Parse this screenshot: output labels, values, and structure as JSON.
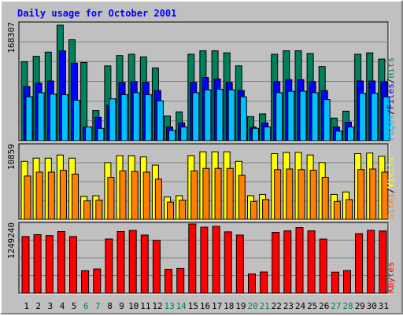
{
  "title": "Daily usage for October 2001",
  "colors": {
    "background": "#c0c0c0",
    "plot": "#c0c0c0",
    "hits": "#00805c",
    "files": "#0000ff",
    "pages": "#00c0ff",
    "visits": "#ffff00",
    "sites": "#ff8000",
    "kbytes": "#ff0000",
    "title": "#0000ff",
    "weekday_label": "#000000",
    "weekend_label": "#00805c"
  },
  "chart_data": [
    {
      "type": "bar",
      "panel": "hits-files-pages",
      "title": "Daily usage for October 2001",
      "ylabel_parts": [
        "Pages",
        "/",
        "Files",
        "/",
        "Hits"
      ],
      "ymax_label": "168307",
      "ylim": [
        0,
        168307
      ],
      "categories": [
        "1",
        "2",
        "3",
        "4",
        "5",
        "6",
        "7",
        "8",
        "9",
        "10",
        "11",
        "12",
        "13",
        "14",
        "15",
        "16",
        "17",
        "18",
        "19",
        "20",
        "21",
        "22",
        "23",
        "24",
        "25",
        "26",
        "27",
        "28",
        "29",
        "30",
        "31"
      ],
      "series": [
        {
          "name": "Hits",
          "values": [
            115000,
            123000,
            129000,
            168307,
            147000,
            114000,
            44000,
            109000,
            124000,
            126000,
            122000,
            106000,
            36000,
            42000,
            126000,
            131000,
            131000,
            128000,
            109000,
            35000,
            39000,
            126000,
            131000,
            131000,
            127000,
            108000,
            33000,
            43000,
            126000,
            128000,
            119000
          ]
        },
        {
          "name": "Files",
          "values": [
            79000,
            84000,
            87000,
            131000,
            113000,
            20000,
            34000,
            52000,
            85000,
            86000,
            85000,
            73000,
            20000,
            26000,
            85000,
            92000,
            90000,
            85000,
            73000,
            20000,
            26000,
            86000,
            89000,
            89000,
            86000,
            73000,
            20000,
            27000,
            87000,
            87000,
            86000
          ]
        },
        {
          "name": "Pages",
          "values": [
            64000,
            70000,
            68000,
            67000,
            59000,
            20000,
            18000,
            61000,
            67000,
            70000,
            67000,
            58000,
            15000,
            20000,
            70000,
            74000,
            75000,
            74000,
            64000,
            18000,
            20000,
            70000,
            72000,
            72000,
            70000,
            60000,
            14000,
            20000,
            69000,
            69000,
            64000
          ]
        }
      ]
    },
    {
      "type": "bar",
      "panel": "sites-visits",
      "ylabel_parts": [
        "Sites",
        "/",
        "Visits"
      ],
      "ymax_label": "10859",
      "ylim": [
        0,
        10859
      ],
      "categories": [
        "1",
        "2",
        "3",
        "4",
        "5",
        "6",
        "7",
        "8",
        "9",
        "10",
        "11",
        "12",
        "13",
        "14",
        "15",
        "16",
        "17",
        "18",
        "19",
        "20",
        "21",
        "22",
        "23",
        "24",
        "25",
        "26",
        "27",
        "28",
        "29",
        "30",
        "31"
      ],
      "series": [
        {
          "name": "Visits",
          "values": [
            9100,
            9600,
            9600,
            10100,
            9600,
            3600,
            3700,
            8900,
            10000,
            10000,
            9800,
            8500,
            3500,
            3700,
            10000,
            10600,
            10600,
            10600,
            9100,
            3700,
            3900,
            10300,
            10500,
            10500,
            10100,
            8900,
            3900,
            4300,
            10300,
            10400,
            9900
          ]
        },
        {
          "name": "Sites",
          "values": [
            6800,
            7400,
            7400,
            7700,
            7100,
            2900,
            3000,
            6600,
            7600,
            7500,
            7400,
            6300,
            2700,
            3000,
            7600,
            8000,
            8000,
            8000,
            6900,
            2800,
            3100,
            7800,
            7900,
            7800,
            7700,
            6600,
            2800,
            3100,
            7800,
            7900,
            7400
          ]
        }
      ]
    },
    {
      "type": "bar",
      "panel": "kbytes",
      "ylabel_parts": [
        "KBytes"
      ],
      "ymax_label": "1249240",
      "ylim": [
        0,
        1249240
      ],
      "categories": [
        "1",
        "2",
        "3",
        "4",
        "5",
        "6",
        "7",
        "8",
        "9",
        "10",
        "11",
        "12",
        "13",
        "14",
        "15",
        "16",
        "17",
        "18",
        "19",
        "20",
        "21",
        "22",
        "23",
        "24",
        "25",
        "26",
        "27",
        "28",
        "29",
        "30",
        "31"
      ],
      "series": [
        {
          "name": "KBytes",
          "values": [
            1023000,
            1058000,
            1041000,
            1115000,
            1023000,
            406000,
            439000,
            980000,
            1115000,
            1134000,
            1050000,
            955000,
            432000,
            448000,
            1249240,
            1193000,
            1208000,
            1109000,
            1050000,
            348000,
            383000,
            1100000,
            1126000,
            1186000,
            1126000,
            978000,
            380000,
            409000,
            1075000,
            1135000,
            1125000
          ]
        }
      ]
    }
  ],
  "weekend_days": [
    "6",
    "7",
    "13",
    "14",
    "20",
    "21",
    "27",
    "28"
  ]
}
